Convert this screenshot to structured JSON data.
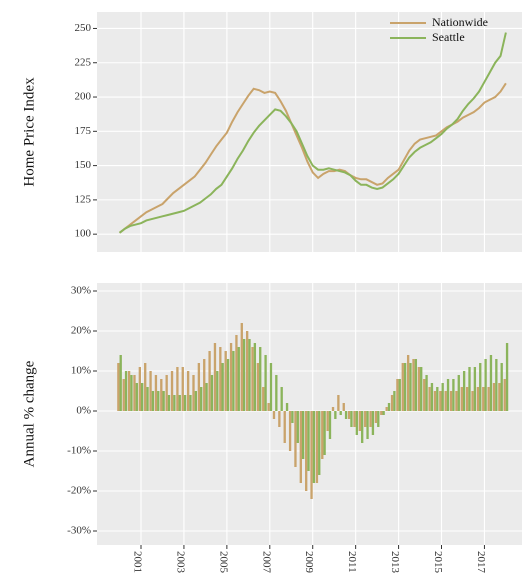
{
  "chart_data": [
    {
      "type": "line",
      "ylabel": "Home Price Index",
      "legend": "top-right",
      "grid": true,
      "xlim": [
        1998.95,
        2018.75
      ],
      "xticks": [
        2001,
        2003,
        2005,
        2007,
        2009,
        2011,
        2013,
        2015,
        2017
      ],
      "ylim": [
        87,
        262
      ],
      "yticks": [
        100,
        125,
        150,
        175,
        200,
        225,
        250
      ],
      "x": [
        2000,
        2000.25,
        2000.5,
        2000.75,
        2001,
        2001.25,
        2001.5,
        2001.75,
        2002,
        2002.25,
        2002.5,
        2002.75,
        2003,
        2003.25,
        2003.5,
        2003.75,
        2004,
        2004.25,
        2004.5,
        2004.75,
        2005,
        2005.25,
        2005.5,
        2005.75,
        2006,
        2006.25,
        2006.5,
        2006.75,
        2007,
        2007.25,
        2007.5,
        2007.75,
        2008,
        2008.25,
        2008.5,
        2008.75,
        2009,
        2009.25,
        2009.5,
        2009.75,
        2010,
        2010.25,
        2010.5,
        2010.75,
        2011,
        2011.25,
        2011.5,
        2011.75,
        2012,
        2012.25,
        2012.5,
        2012.75,
        2013,
        2013.25,
        2013.5,
        2013.75,
        2014,
        2014.25,
        2014.5,
        2014.75,
        2015,
        2015.25,
        2015.5,
        2015.75,
        2016,
        2016.25,
        2016.5,
        2016.75,
        2017,
        2017.25,
        2017.5,
        2017.75,
        2018
      ],
      "series": [
        {
          "name": "Nationwide",
          "color": "#c9a36b",
          "values": [
            101,
            104,
            107,
            110,
            113,
            116,
            118,
            120,
            122,
            126,
            130,
            133,
            136,
            139,
            142,
            147,
            152,
            158,
            164,
            169,
            174,
            182,
            189,
            195,
            201,
            206,
            205,
            203,
            204,
            203,
            197,
            190,
            181,
            172,
            163,
            153,
            145,
            141,
            144,
            146,
            146,
            147,
            146,
            143,
            141,
            140,
            140,
            138,
            136,
            137,
            141,
            144,
            147,
            154,
            161,
            166,
            169,
            170,
            171,
            172,
            175,
            178,
            180,
            182,
            185,
            187,
            189,
            192,
            196,
            198,
            200,
            204,
            210
          ]
        },
        {
          "name": "Seattle",
          "color": "#8bb45b",
          "values": [
            101,
            104,
            106,
            107,
            108,
            110,
            111,
            112,
            113,
            114,
            115,
            116,
            117,
            119,
            121,
            123,
            126,
            129,
            133,
            136,
            142,
            148,
            155,
            161,
            168,
            174,
            179,
            183,
            187,
            191,
            190,
            186,
            181,
            175,
            166,
            157,
            150,
            147,
            147,
            148,
            147,
            146,
            145,
            143,
            139,
            136,
            136,
            134,
            133,
            134,
            137,
            140,
            144,
            150,
            156,
            160,
            163,
            165,
            167,
            170,
            173,
            177,
            180,
            184,
            190,
            195,
            199,
            204,
            211,
            218,
            225,
            230,
            247
          ]
        }
      ]
    },
    {
      "type": "bar",
      "ylabel": "Annual % change",
      "grid": true,
      "xlim": [
        1998.95,
        2018.75
      ],
      "xticks": [
        2001,
        2003,
        2005,
        2007,
        2009,
        2011,
        2013,
        2015,
        2017
      ],
      "ylim": [
        -33.5,
        32
      ],
      "yticks": [
        {
          "value": 30,
          "label": "30%"
        },
        {
          "value": 20,
          "label": "20%"
        },
        {
          "value": 10,
          "label": "10%"
        },
        {
          "value": 0,
          "label": "0%"
        },
        {
          "value": -10,
          "label": "-10%"
        },
        {
          "value": -20,
          "label": "-20%"
        },
        {
          "value": -30,
          "label": "-30%"
        }
      ],
      "x": [
        2000,
        2000.25,
        2000.5,
        2000.75,
        2001,
        2001.25,
        2001.5,
        2001.75,
        2002,
        2002.25,
        2002.5,
        2002.75,
        2003,
        2003.25,
        2003.5,
        2003.75,
        2004,
        2004.25,
        2004.5,
        2004.75,
        2005,
        2005.25,
        2005.5,
        2005.75,
        2006,
        2006.25,
        2006.5,
        2006.75,
        2007,
        2007.25,
        2007.5,
        2007.75,
        2008,
        2008.25,
        2008.5,
        2008.75,
        2009,
        2009.25,
        2009.5,
        2009.75,
        2010,
        2010.25,
        2010.5,
        2010.75,
        2011,
        2011.25,
        2011.5,
        2011.75,
        2012,
        2012.25,
        2012.5,
        2012.75,
        2013,
        2013.25,
        2013.5,
        2013.75,
        2014,
        2014.25,
        2014.5,
        2014.75,
        2015,
        2015.25,
        2015.5,
        2015.75,
        2016,
        2016.25,
        2016.5,
        2016.75,
        2017,
        2017.25,
        2017.5,
        2017.75,
        2018
      ],
      "series": [
        {
          "name": "Nationwide",
          "color": "#c9a36b",
          "values": [
            12,
            8,
            10,
            9,
            11,
            12,
            10,
            9,
            8,
            9,
            10,
            11,
            11,
            10,
            9,
            12,
            13,
            15,
            17,
            16,
            15,
            17,
            19,
            22,
            20,
            16,
            12,
            6,
            2,
            -2,
            -4,
            -8,
            -10,
            -14,
            -18,
            -20,
            -22,
            -18,
            -12,
            -5,
            1,
            4,
            2,
            -2,
            -4,
            -5,
            -4,
            -4,
            -3,
            -1,
            1,
            4,
            8,
            12,
            14,
            13,
            11,
            8,
            6,
            5,
            5,
            5,
            5,
            5,
            6,
            6,
            5,
            6,
            6,
            6,
            7,
            7,
            8
          ]
        },
        {
          "name": "Seattle",
          "color": "#8bb45b",
          "values": [
            14,
            10,
            9,
            7,
            7,
            6,
            5,
            5,
            5,
            4,
            4,
            4,
            4,
            4,
            5,
            6,
            7,
            9,
            10,
            12,
            13,
            15,
            16,
            18,
            18,
            17,
            16,
            14,
            12,
            9,
            6,
            2,
            -3,
            -8,
            -12,
            -15,
            -18,
            -16,
            -11,
            -7,
            -2,
            -1,
            -2,
            -4,
            -6,
            -8,
            -7,
            -6,
            -4,
            -1,
            2,
            5,
            8,
            12,
            12,
            13,
            11,
            9,
            7,
            6,
            7,
            8,
            8,
            9,
            10,
            11,
            11,
            12,
            13,
            14,
            13,
            12,
            17
          ]
        }
      ]
    }
  ]
}
